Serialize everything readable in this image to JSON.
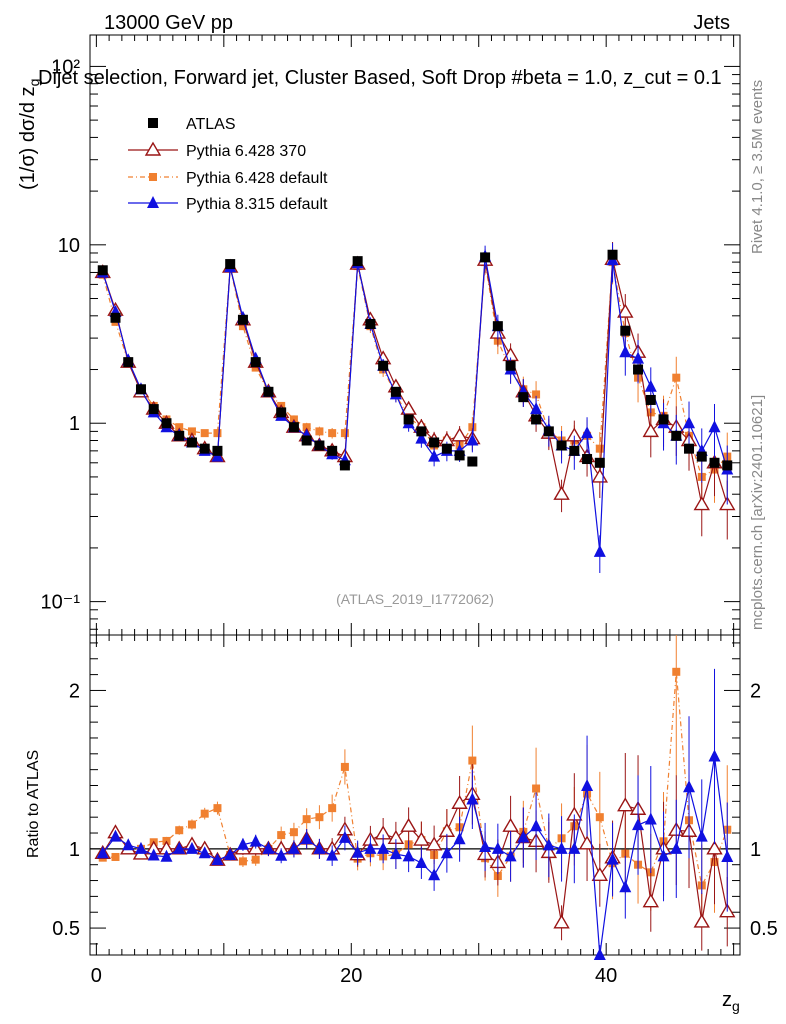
{
  "header": {
    "energy_label": "13000 GeV pp",
    "category_label": "Jets",
    "title": "Dijet selection, Forward jet, Cluster Based, Soft Drop #beta = 1.0, z_cut = 0.1",
    "side_label_rivet": "Rivet 4.1.0, ≥ 3.5M events",
    "side_label_site": "mcplots.cern.ch [arXiv:2401.10621]",
    "analysis_id": "(ATLAS_2019_I1772062)"
  },
  "chart_data": {
    "type": "scatter",
    "upper_panel": {
      "ylabel": "(1/σ) dσ/d z_g",
      "yscale": "log",
      "ylim": [
        0.065,
        150
      ],
      "ytick_labels": [
        "10²",
        "10",
        "1",
        "10⁻¹"
      ],
      "ytick_values": [
        100,
        10,
        1,
        0.1
      ]
    },
    "lower_panel": {
      "ylabel": "Ratio to ATLAS",
      "ylim": [
        0.33,
        2.35
      ],
      "ytick_labels": [
        "0.5",
        "1",
        "2"
      ],
      "ytick_values": [
        0.5,
        1,
        2
      ]
    },
    "xlabel": "z_g",
    "xlim": [
      -0.5,
      50.5
    ],
    "xtick_labels": [
      "0",
      "20",
      "40"
    ],
    "xtick_values": [
      0,
      20,
      40
    ],
    "x": [
      0.5,
      1.5,
      2.5,
      3.5,
      4.5,
      5.5,
      6.5,
      7.5,
      8.5,
      9.5,
      10.5,
      11.5,
      12.5,
      13.5,
      14.5,
      15.5,
      16.5,
      17.5,
      18.5,
      19.5,
      20.5,
      21.5,
      22.5,
      23.5,
      24.5,
      25.5,
      26.5,
      27.5,
      28.5,
      29.5,
      30.5,
      31.5,
      32.5,
      33.5,
      34.5,
      35.5,
      36.5,
      37.5,
      38.5,
      39.5,
      40.5,
      41.5,
      42.5,
      43.5,
      44.5,
      45.5,
      46.5,
      47.5,
      48.5,
      49.5
    ],
    "series": [
      {
        "name": "ATLAS",
        "color": "#000000",
        "marker": "square",
        "values": [
          7.2,
          3.9,
          2.2,
          1.55,
          1.2,
          1.0,
          0.85,
          0.78,
          0.72,
          0.7,
          7.8,
          3.8,
          2.2,
          1.5,
          1.15,
          0.95,
          0.8,
          0.75,
          0.7,
          0.58,
          8.1,
          3.6,
          2.1,
          1.5,
          1.05,
          0.9,
          0.78,
          0.72,
          0.66,
          0.61,
          8.5,
          3.5,
          2.1,
          1.4,
          1.05,
          0.9,
          0.75,
          0.7,
          0.63,
          0.6,
          8.8,
          3.3,
          2.0,
          1.35,
          1.05,
          0.85,
          0.72,
          0.65,
          0.6,
          0.58
        ]
      },
      {
        "name": "Pythia 6.428 370",
        "color": "#9a1515",
        "marker": "open-triangle",
        "values": [
          7.0,
          4.3,
          2.2,
          1.5,
          1.2,
          1.0,
          0.85,
          0.8,
          0.72,
          0.65,
          7.5,
          3.8,
          2.2,
          1.5,
          1.15,
          0.95,
          0.85,
          0.75,
          0.7,
          0.65,
          7.8,
          3.8,
          2.3,
          1.6,
          1.2,
          0.95,
          0.8,
          0.8,
          0.85,
          0.82,
          8.2,
          3.2,
          2.4,
          1.5,
          1.1,
          0.88,
          0.4,
          0.85,
          0.65,
          0.5,
          8.3,
          4.2,
          2.5,
          0.9,
          1.05,
          0.95,
          0.8,
          0.35,
          0.6,
          0.35
        ]
      },
      {
        "name": "Pythia 6.428 default",
        "color": "#f08030",
        "marker": "filled-square",
        "values": [
          6.8,
          3.7,
          2.2,
          1.55,
          1.25,
          1.05,
          0.95,
          0.9,
          0.88,
          0.88,
          7.5,
          3.5,
          2.05,
          1.5,
          1.25,
          1.05,
          0.95,
          0.9,
          0.88,
          0.88,
          7.6,
          3.5,
          2.0,
          1.45,
          1.08,
          0.95,
          0.75,
          0.8,
          0.75,
          0.95,
          8.0,
          2.9,
          2.0,
          1.55,
          1.45,
          0.9,
          0.8,
          0.8,
          0.85,
          0.72,
          8.0,
          3.2,
          1.8,
          1.15,
          1.1,
          1.8,
          0.85,
          0.5,
          0.55,
          0.65
        ]
      },
      {
        "name": "Pythia 8.315 default",
        "color": "#1010e0",
        "marker": "filled-triangle",
        "values": [
          7.0,
          4.2,
          2.25,
          1.55,
          1.15,
          0.95,
          0.85,
          0.78,
          0.7,
          0.65,
          7.5,
          3.9,
          2.3,
          1.5,
          1.1,
          0.95,
          0.85,
          0.75,
          0.67,
          0.62,
          7.9,
          3.6,
          2.1,
          1.45,
          1.0,
          0.82,
          0.65,
          0.7,
          0.7,
          0.8,
          8.6,
          3.5,
          2.0,
          1.5,
          1.2,
          0.92,
          0.75,
          0.7,
          0.88,
          0.19,
          8.2,
          2.5,
          2.3,
          1.6,
          1.0,
          0.85,
          1.0,
          0.7,
          0.95,
          0.55
        ]
      }
    ]
  }
}
